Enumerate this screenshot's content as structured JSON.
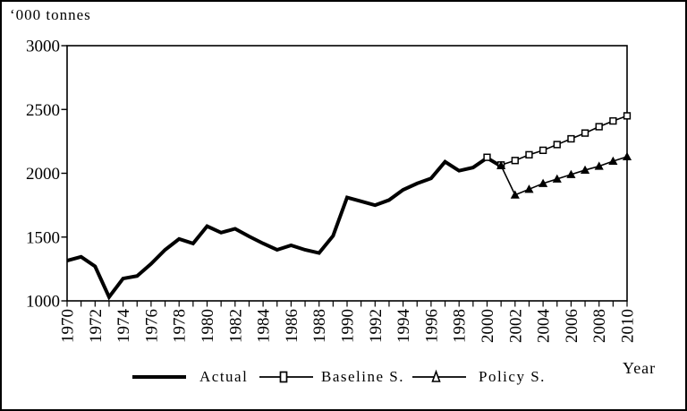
{
  "chart": {
    "y_unit_label": "‘000 tonnes",
    "x_title": "Year"
  },
  "legend": {
    "items": [
      {
        "label": "Actual",
        "marker": "none",
        "line": "thick"
      },
      {
        "label": "Baseline S.",
        "marker": "open-square",
        "line": "thin"
      },
      {
        "label": "Policy S.",
        "marker": "open-triangle",
        "line": "thin"
      }
    ]
  },
  "colors": {
    "line": "#000000",
    "background": "#ffffff",
    "frame": "#000000"
  },
  "chart_data": {
    "type": "line",
    "title": "",
    "xlabel": "Year",
    "ylabel": "'000 tonnes",
    "grid": false,
    "legend_position": "bottom",
    "xlim": [
      1970,
      2010
    ],
    "ylim": [
      1000,
      3000
    ],
    "y_ticks": [
      1000,
      1500,
      2000,
      2500,
      3000
    ],
    "x_minor_tick_step": 1,
    "x_label_step": 2,
    "x_labels": [
      1970,
      1972,
      1974,
      1976,
      1978,
      1980,
      1982,
      1984,
      1986,
      1988,
      1990,
      1992,
      1994,
      1996,
      1998,
      2000,
      2002,
      2004,
      2006,
      2008,
      2010
    ],
    "series": [
      {
        "name": "Actual",
        "marker": "none",
        "line_width": 4,
        "x": [
          1970,
          1971,
          1972,
          1973,
          1974,
          1975,
          1976,
          1977,
          1978,
          1979,
          1980,
          1981,
          1982,
          1983,
          1984,
          1985,
          1986,
          1987,
          1988,
          1989,
          1990,
          1991,
          1992,
          1993,
          1994,
          1995,
          1996,
          1997,
          1998,
          1999,
          2000,
          2001
        ],
        "y": [
          1315,
          1345,
          1270,
          1030,
          1175,
          1195,
          1290,
          1400,
          1485,
          1450,
          1585,
          1535,
          1565,
          1505,
          1450,
          1400,
          1435,
          1400,
          1375,
          1510,
          1810,
          1780,
          1750,
          1790,
          1870,
          1920,
          1960,
          2090,
          2020,
          2045,
          2120,
          2055
        ]
      },
      {
        "name": "Baseline S.",
        "marker": "open-square",
        "line_width": 1.6,
        "x": [
          2000,
          2001,
          2002,
          2003,
          2004,
          2005,
          2006,
          2007,
          2008,
          2009,
          2010
        ],
        "y": [
          2125,
          2065,
          2100,
          2145,
          2180,
          2225,
          2270,
          2315,
          2365,
          2410,
          2450
        ]
      },
      {
        "name": "Policy S.",
        "marker": "filled-triangle",
        "line_width": 1.6,
        "x": [
          2001,
          2002,
          2003,
          2004,
          2005,
          2006,
          2007,
          2008,
          2009,
          2010
        ],
        "y": [
          2060,
          1830,
          1875,
          1920,
          1955,
          1990,
          2025,
          2055,
          2095,
          2130
        ]
      }
    ]
  }
}
